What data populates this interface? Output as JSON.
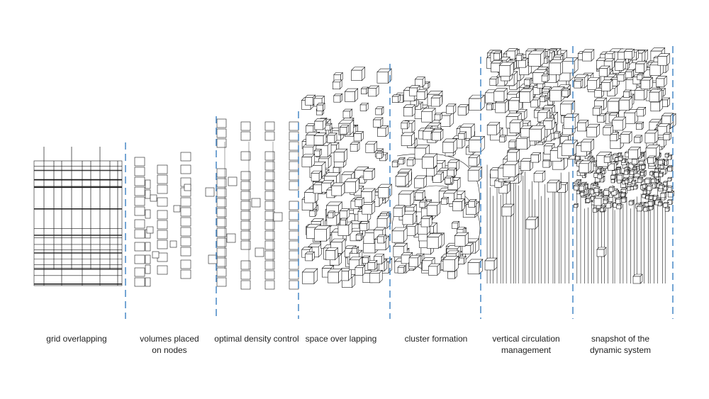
{
  "stages": [
    {
      "caption": "grid overlapping"
    },
    {
      "caption": "volumes placed\non nodes"
    },
    {
      "caption": "optimal density control"
    },
    {
      "caption": "space over lapping"
    },
    {
      "caption": "cluster formation"
    },
    {
      "caption": "vertical circulation\nmanagement"
    },
    {
      "caption": "snapshot of the\ndynamic system"
    }
  ],
  "colors": {
    "divider": "#3a7fc1",
    "ink": "#1a1a1a",
    "background": "#ffffff"
  }
}
